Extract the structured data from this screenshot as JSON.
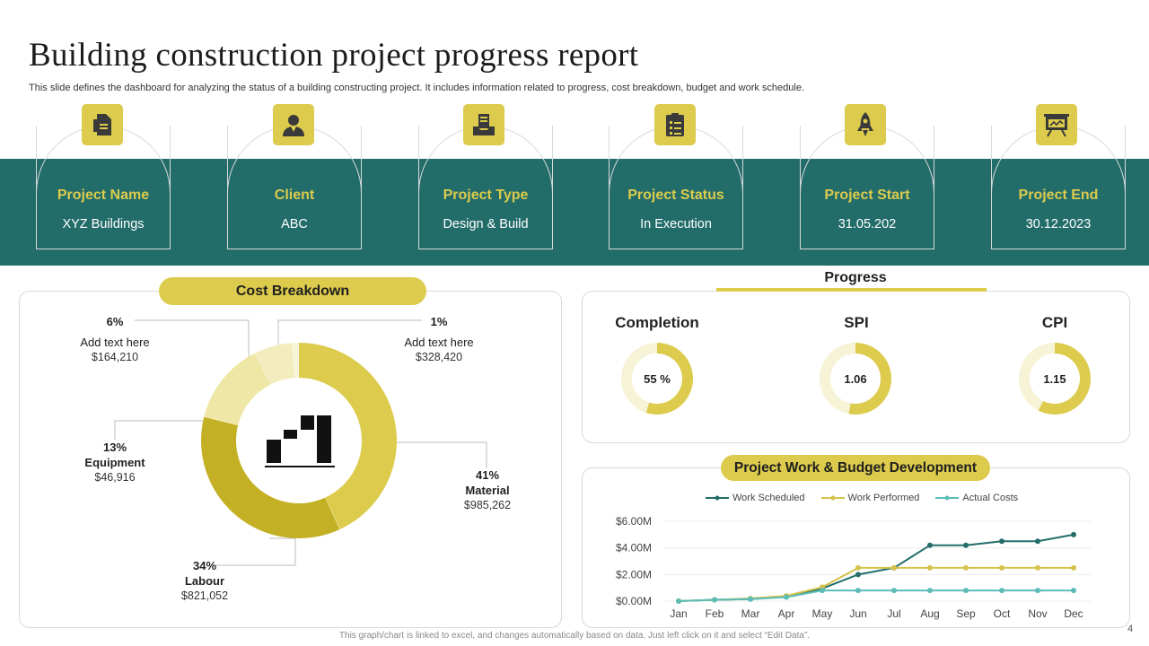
{
  "header": {
    "title": "Building construction project progress report",
    "subtitle": "This slide defines the dashboard for analyzing the status of a building constructing project. It includes information related to progress, cost breakdown, budget and work schedule."
  },
  "info_cards": [
    {
      "label": "Project Name",
      "value": "XYZ  Buildings",
      "icon": "document-icon"
    },
    {
      "label": "Client",
      "value": "ABC",
      "icon": "person-icon"
    },
    {
      "label": "Project Type",
      "value": "Design & Build",
      "icon": "file-tray-icon"
    },
    {
      "label": "Project Status",
      "value": "In Execution",
      "icon": "clipboard-checklist-icon"
    },
    {
      "label": "Project Start",
      "value": "31.05.202",
      "icon": "rocket-icon"
    },
    {
      "label": "Project End",
      "value": "30.12.2023",
      "icon": "presentation-board-icon"
    }
  ],
  "cost": {
    "title": "Cost Breakdown",
    "labels": {
      "tl": {
        "pct": "6%",
        "name": "Add text here",
        "amount": "$164,210"
      },
      "tr": {
        "pct": "1%",
        "name": "Add text here",
        "amount": "$328,420"
      },
      "equip": {
        "pct": "13%",
        "name": "Equipment",
        "amount": "$46,916"
      },
      "material": {
        "pct": "41%",
        "name": "Material",
        "amount": "$985,262"
      },
      "labour": {
        "pct": "34%",
        "name": "Labour",
        "amount": "$821,052"
      }
    }
  },
  "progress": {
    "title": "Progress",
    "gauges": [
      {
        "title": "Completion",
        "label": "55 %",
        "value": 0.55
      },
      {
        "title": "SPI",
        "label": "1.06",
        "value": 0.53
      },
      {
        "title": "CPI",
        "label": "1.15",
        "value": 0.575
      }
    ]
  },
  "work": {
    "title": "Project Work & Budget Development"
  },
  "colors": {
    "teal": "#226d6a",
    "gold": "#dccb4c",
    "dark_gold": "#c4b024",
    "light_gold": "#f0e9b0",
    "pale_gold": "#f7f3d6",
    "cyan": "#5bbcb8"
  },
  "chart_data": [
    {
      "type": "pie",
      "title": "Cost Breakdown",
      "style": "donut",
      "slices": [
        {
          "label": "Material",
          "value": 41,
          "color": "#dccb4c"
        },
        {
          "label": "Labour",
          "value": 34,
          "color": "#c4b024"
        },
        {
          "label": "Equipment",
          "value": 13,
          "color": "#efe7a6"
        },
        {
          "label": "Add text here",
          "value": 6,
          "color": "#f3ecbc"
        },
        {
          "label": "Add text here",
          "value": 1,
          "color": "#f8f4d8"
        }
      ]
    },
    {
      "type": "line",
      "title": "Project Work & Budget Development",
      "categories": [
        "Jan",
        "Feb",
        "Mar",
        "Apr",
        "May",
        "Jun",
        "Jul",
        "Aug",
        "Sep",
        "Oct",
        "Nov",
        "Dec"
      ],
      "ylim": [
        0,
        6
      ],
      "yticks": [
        0,
        2,
        4,
        6
      ],
      "ytick_labels": [
        "$0.00M",
        "$2.00M",
        "$4.00M",
        "$6.00M"
      ],
      "series": [
        {
          "name": "Work Scheduled",
          "color": "#226d6a",
          "values": [
            0.0,
            0.1,
            0.15,
            0.35,
            0.95,
            2.0,
            2.5,
            4.2,
            4.2,
            4.5,
            4.5,
            5.0
          ]
        },
        {
          "name": "Work Performed",
          "color": "#d4c24a",
          "values": [
            0.0,
            0.1,
            0.2,
            0.4,
            1.05,
            2.5,
            2.5,
            2.5,
            2.5,
            2.5,
            2.5,
            2.5
          ]
        },
        {
          "name": "Actual Costs",
          "color": "#5bbcb8",
          "values": [
            0.0,
            0.1,
            0.15,
            0.3,
            0.8,
            0.8,
            0.8,
            0.8,
            0.8,
            0.8,
            0.8,
            0.8
          ]
        }
      ]
    }
  ],
  "footer": {
    "note": "This graph/chart is linked to excel, and changes automatically based on data. Just left click on it and select “Edit Data”.",
    "page": "4"
  }
}
